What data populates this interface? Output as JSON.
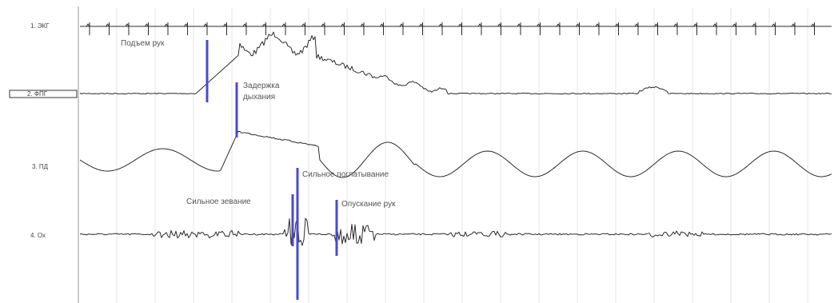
{
  "chart_data": {
    "type": "line",
    "title": "",
    "channels": [
      {
        "name": "1. ЭКГ"
      },
      {
        "name": "2. ФПГ"
      },
      {
        "name": "3. ПД"
      },
      {
        "name": "4. Ох"
      }
    ],
    "annotations": [
      {
        "text": "Подъем рук"
      },
      {
        "text": "Задержка дыхания"
      },
      {
        "text": "Сильное зевание"
      },
      {
        "text": "Сильное поглатывание"
      },
      {
        "text": "Опускание рук"
      }
    ],
    "grid": true,
    "legend": "none",
    "colors": {
      "trace": "#2b2b2b",
      "marker": "#4a4ad0",
      "grid": "#e4e4e4",
      "axis": "#999999"
    }
  }
}
